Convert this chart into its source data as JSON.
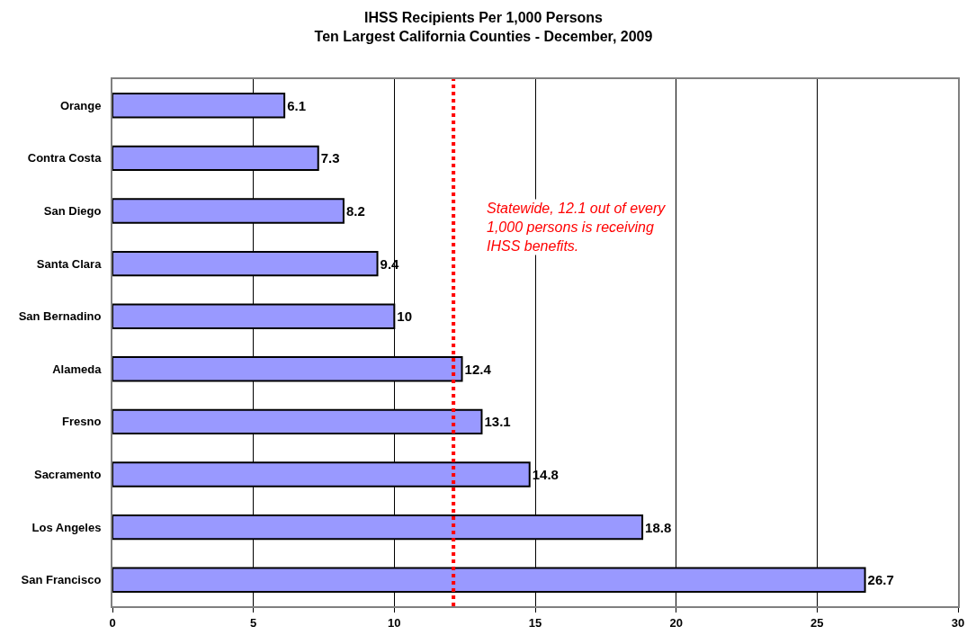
{
  "chart_data": {
    "type": "bar",
    "orientation": "horizontal",
    "title": "IHSS Recipients Per 1,000 Persons",
    "subtitle": "Ten Largest California Counties - December, 2009",
    "categories": [
      "Orange",
      "Contra Costa",
      "San Diego",
      "Santa Clara",
      "San Bernadino",
      "Alameda",
      "Fresno",
      "Sacramento",
      "Los Angeles",
      "San Francisco"
    ],
    "values": [
      6.1,
      7.3,
      8.2,
      9.4,
      10,
      12.4,
      13.1,
      14.8,
      18.8,
      26.7
    ],
    "color": "#9999ff",
    "xlim": [
      0,
      30
    ],
    "xticks": [
      0,
      5,
      10,
      15,
      20,
      25,
      30
    ],
    "grid": "x",
    "data_labels": true,
    "ref_lines": [
      {
        "axis": "x",
        "value": 12.1,
        "label": "Statewide, 12.1 out of every 1,000 persons is receiving IHSS benefits.",
        "color": "#ff0000",
        "line_style": "dotted"
      }
    ]
  }
}
